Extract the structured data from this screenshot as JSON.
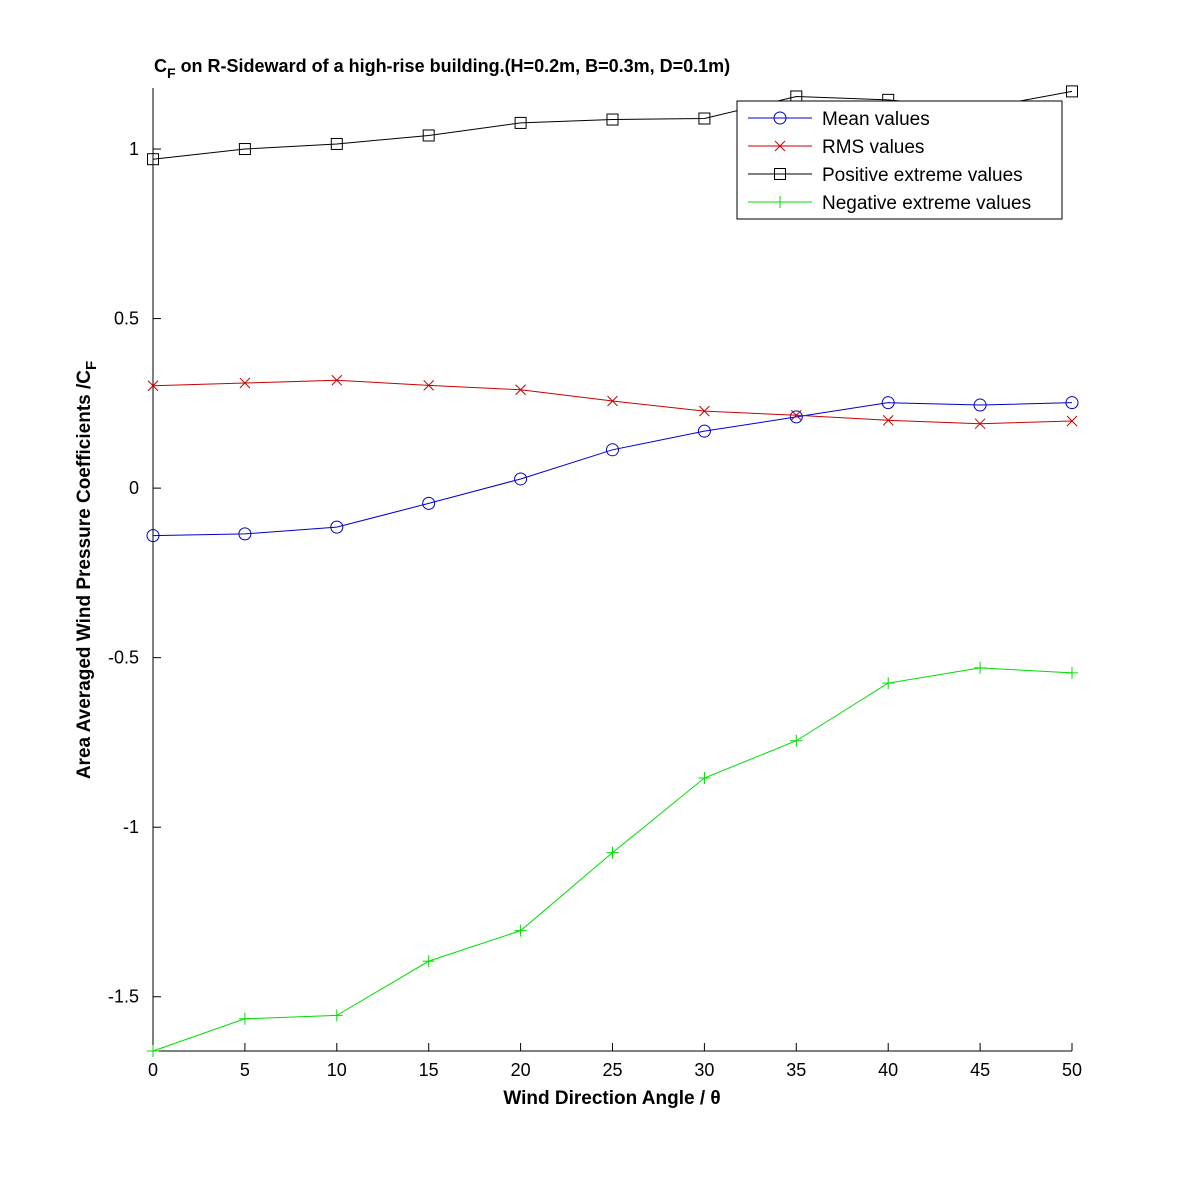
{
  "chart_data": {
    "type": "line",
    "title_prefix": "C",
    "title_subscript": "F",
    "title_rest": " on R-Sideward of a high-rise building.(H=0.2m, B=0.3m, D=0.1m)",
    "xlabel": "Wind Direction Angle  / θ",
    "ylabel": "Area Averaged Wind Pressure Coefficients /C",
    "ylabel_subscript": "F",
    "xlim": [
      0,
      50
    ],
    "ylim": [
      -1.66,
      1.18
    ],
    "x_ticks": [
      0,
      5,
      10,
      15,
      20,
      25,
      30,
      35,
      40,
      45,
      50
    ],
    "x_tick_labels": [
      "0",
      "5",
      "10",
      "15",
      "20",
      "25",
      "30",
      "35",
      "40",
      "45",
      "50"
    ],
    "y_ticks": [
      1,
      0.5,
      0,
      -0.5,
      -1,
      -1.5
    ],
    "y_tick_labels": [
      "1",
      "0.5",
      "0",
      "-0.5",
      "-1",
      "-1.5"
    ],
    "grid": false,
    "legend_position": "top-right",
    "x": [
      0,
      5,
      10,
      15,
      20,
      25,
      30,
      35,
      40,
      45,
      50
    ],
    "series": [
      {
        "name": "Mean values",
        "color": "#0000cc",
        "marker": "circle",
        "values": [
          -0.14,
          -0.135,
          -0.115,
          -0.045,
          0.027,
          0.113,
          0.168,
          0.21,
          0.252,
          0.245,
          0.252
        ]
      },
      {
        "name": "RMS values",
        "color": "#cc0000",
        "marker": "x",
        "values": [
          0.302,
          0.31,
          0.318,
          0.303,
          0.29,
          0.257,
          0.227,
          0.215,
          0.2,
          0.19,
          0.198
        ]
      },
      {
        "name": "Positive extreme values",
        "color": "#000000",
        "marker": "square",
        "values": [
          0.97,
          1.0,
          1.015,
          1.04,
          1.077,
          1.087,
          1.09,
          1.155,
          1.145,
          1.12,
          1.17
        ]
      },
      {
        "name": "Negative extreme values",
        "color": "#00dd00",
        "marker": "plus",
        "values": [
          -1.66,
          -1.565,
          -1.555,
          -1.395,
          -1.305,
          -1.075,
          -0.855,
          -0.745,
          -0.575,
          -0.53,
          -0.545
        ]
      }
    ]
  }
}
